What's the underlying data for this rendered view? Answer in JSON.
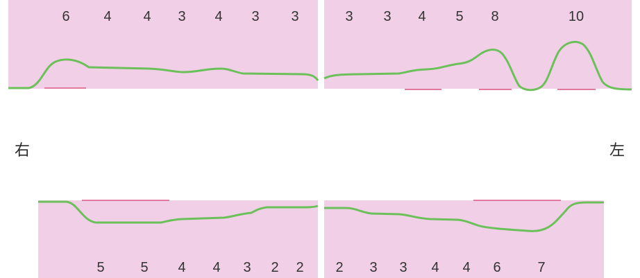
{
  "labels": {
    "right": "右",
    "left": "左"
  },
  "colors": {
    "panel_fill": "#f1cfe6",
    "gum_line": "#6cc05a",
    "marker": "#e2789e",
    "number": "#333333",
    "background": "#ffffff"
  },
  "panels": {
    "upper_right": {
      "numbers": [
        "6",
        "4",
        "4",
        "3",
        "4",
        "3",
        "3"
      ]
    },
    "upper_left": {
      "numbers": [
        "3",
        "3",
        "4",
        "5",
        "8",
        "10"
      ]
    },
    "lower_right": {
      "numbers": [
        "5",
        "5",
        "4",
        "4",
        "3",
        "2",
        "2"
      ]
    },
    "lower_left": {
      "numbers": [
        "2",
        "3",
        "3",
        "4",
        "4",
        "6",
        "7"
      ]
    }
  }
}
